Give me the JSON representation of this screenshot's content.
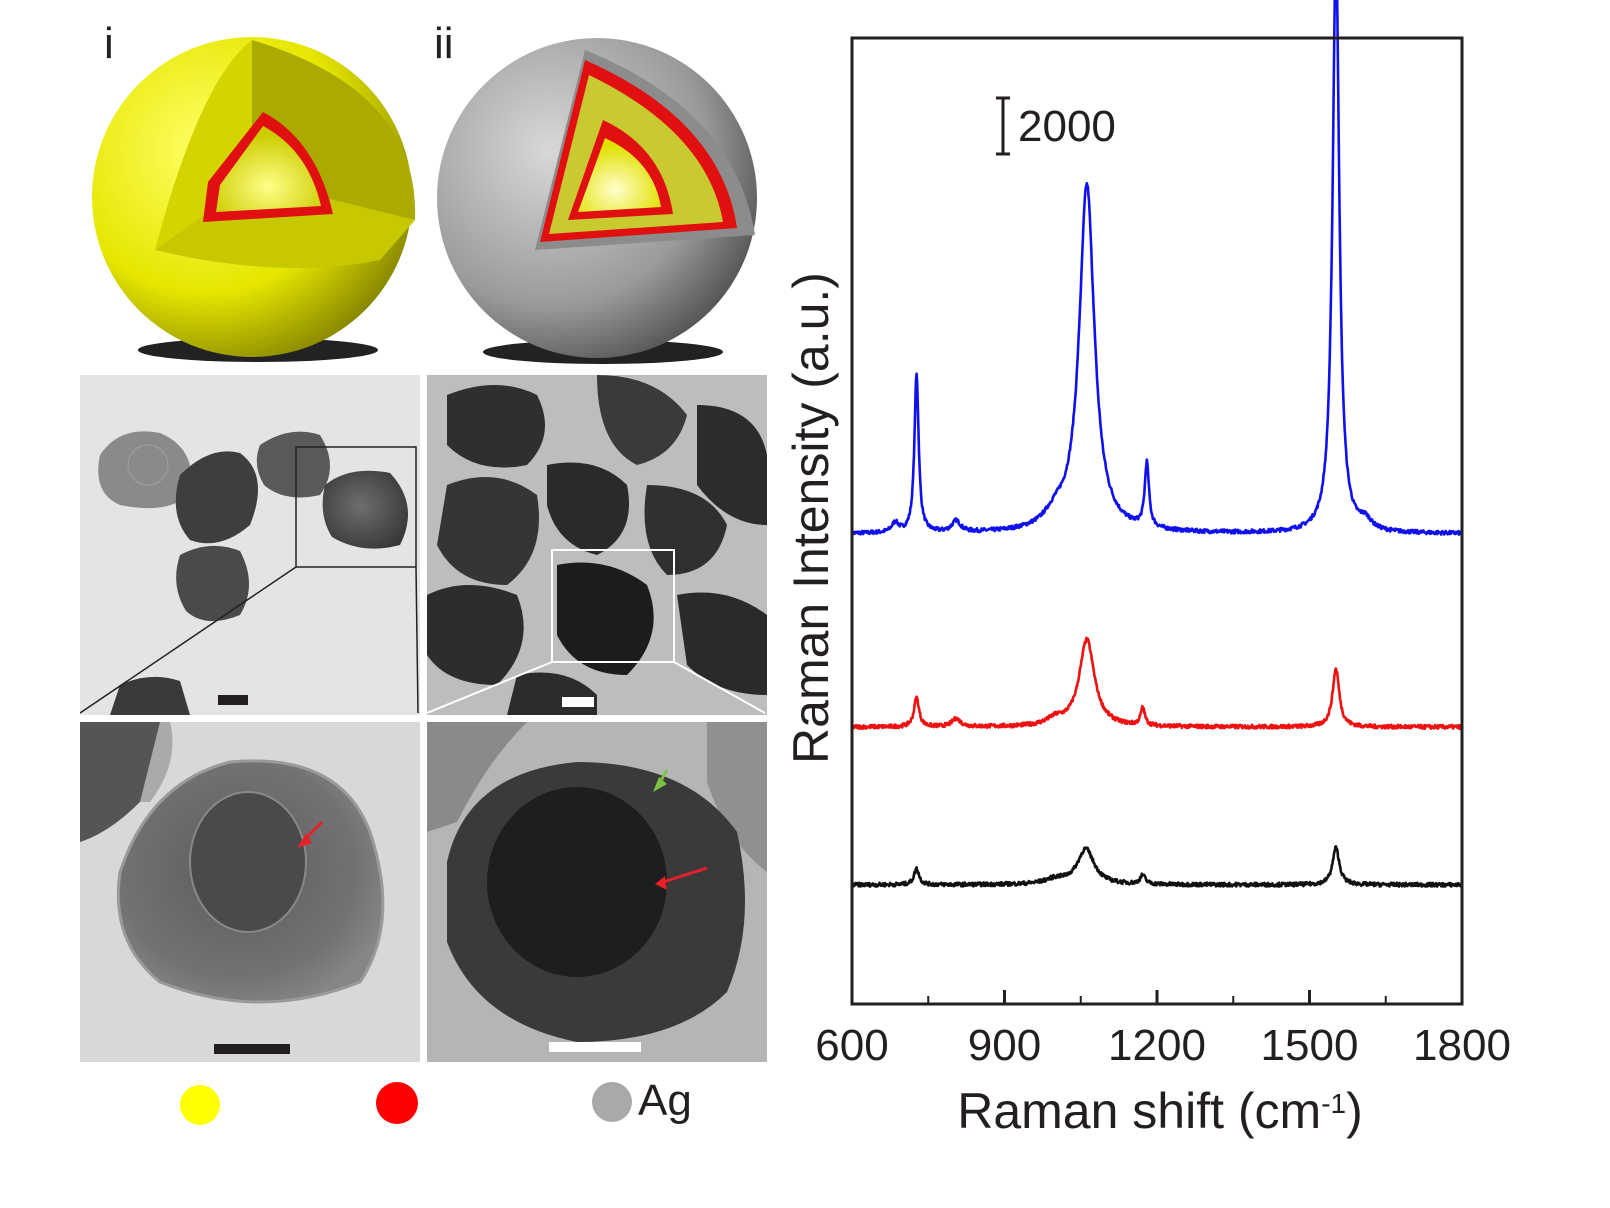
{
  "panels": {
    "label_i": "i",
    "label_ii": "ii"
  },
  "legend": {
    "items": [
      {
        "name": "",
        "color": "#ffff00"
      },
      {
        "name": "",
        "color": "#ff0000"
      },
      {
        "name": "Ag",
        "color": "#a9a9a9"
      }
    ]
  },
  "tem": {
    "arrow_red_color": "#e8202a",
    "arrow_green_color": "#7cc242"
  },
  "chart_data": {
    "type": "line",
    "xlabel_main": "Raman shift (cm",
    "xlabel_sup": "-1",
    "xlabel_end": ")",
    "ylabel": "Raman Intensity (a.u.)",
    "xlim": [
      600,
      1800
    ],
    "xticks": [
      600,
      900,
      1200,
      1500,
      1800
    ],
    "scale_bar_label": "2000",
    "scale_bar_value": 2000,
    "ylim": [
      0,
      30000
    ],
    "grid": false,
    "series": [
      {
        "color": "#1010ee",
        "baseline": 14600,
        "peaks": [
          {
            "x": 685,
            "h": 300,
            "w": 8
          },
          {
            "x": 727,
            "h": 4900,
            "w": 5
          },
          {
            "x": 805,
            "h": 350,
            "w": 10
          },
          {
            "x": 1000,
            "h": 400,
            "w": 25
          },
          {
            "x": 1062,
            "h": 10800,
            "w": 18
          },
          {
            "x": 1180,
            "h": 2000,
            "w": 5
          },
          {
            "x": 1552,
            "h": 18000,
            "w": 8
          },
          {
            "x": 1610,
            "h": 300,
            "w": 14
          }
        ]
      },
      {
        "color": "#ee1111",
        "baseline": 8600,
        "peaks": [
          {
            "x": 727,
            "h": 900,
            "w": 6
          },
          {
            "x": 805,
            "h": 250,
            "w": 10
          },
          {
            "x": 1000,
            "h": 200,
            "w": 20
          },
          {
            "x": 1062,
            "h": 2700,
            "w": 18
          },
          {
            "x": 1172,
            "h": 550,
            "w": 5
          },
          {
            "x": 1552,
            "h": 1800,
            "w": 8
          }
        ]
      },
      {
        "color": "#111111",
        "baseline": 3700,
        "peaks": [
          {
            "x": 727,
            "h": 500,
            "w": 6
          },
          {
            "x": 1000,
            "h": 150,
            "w": 25
          },
          {
            "x": 1060,
            "h": 1100,
            "w": 20
          },
          {
            "x": 1172,
            "h": 280,
            "w": 6
          },
          {
            "x": 1552,
            "h": 1150,
            "w": 8
          }
        ]
      }
    ]
  }
}
